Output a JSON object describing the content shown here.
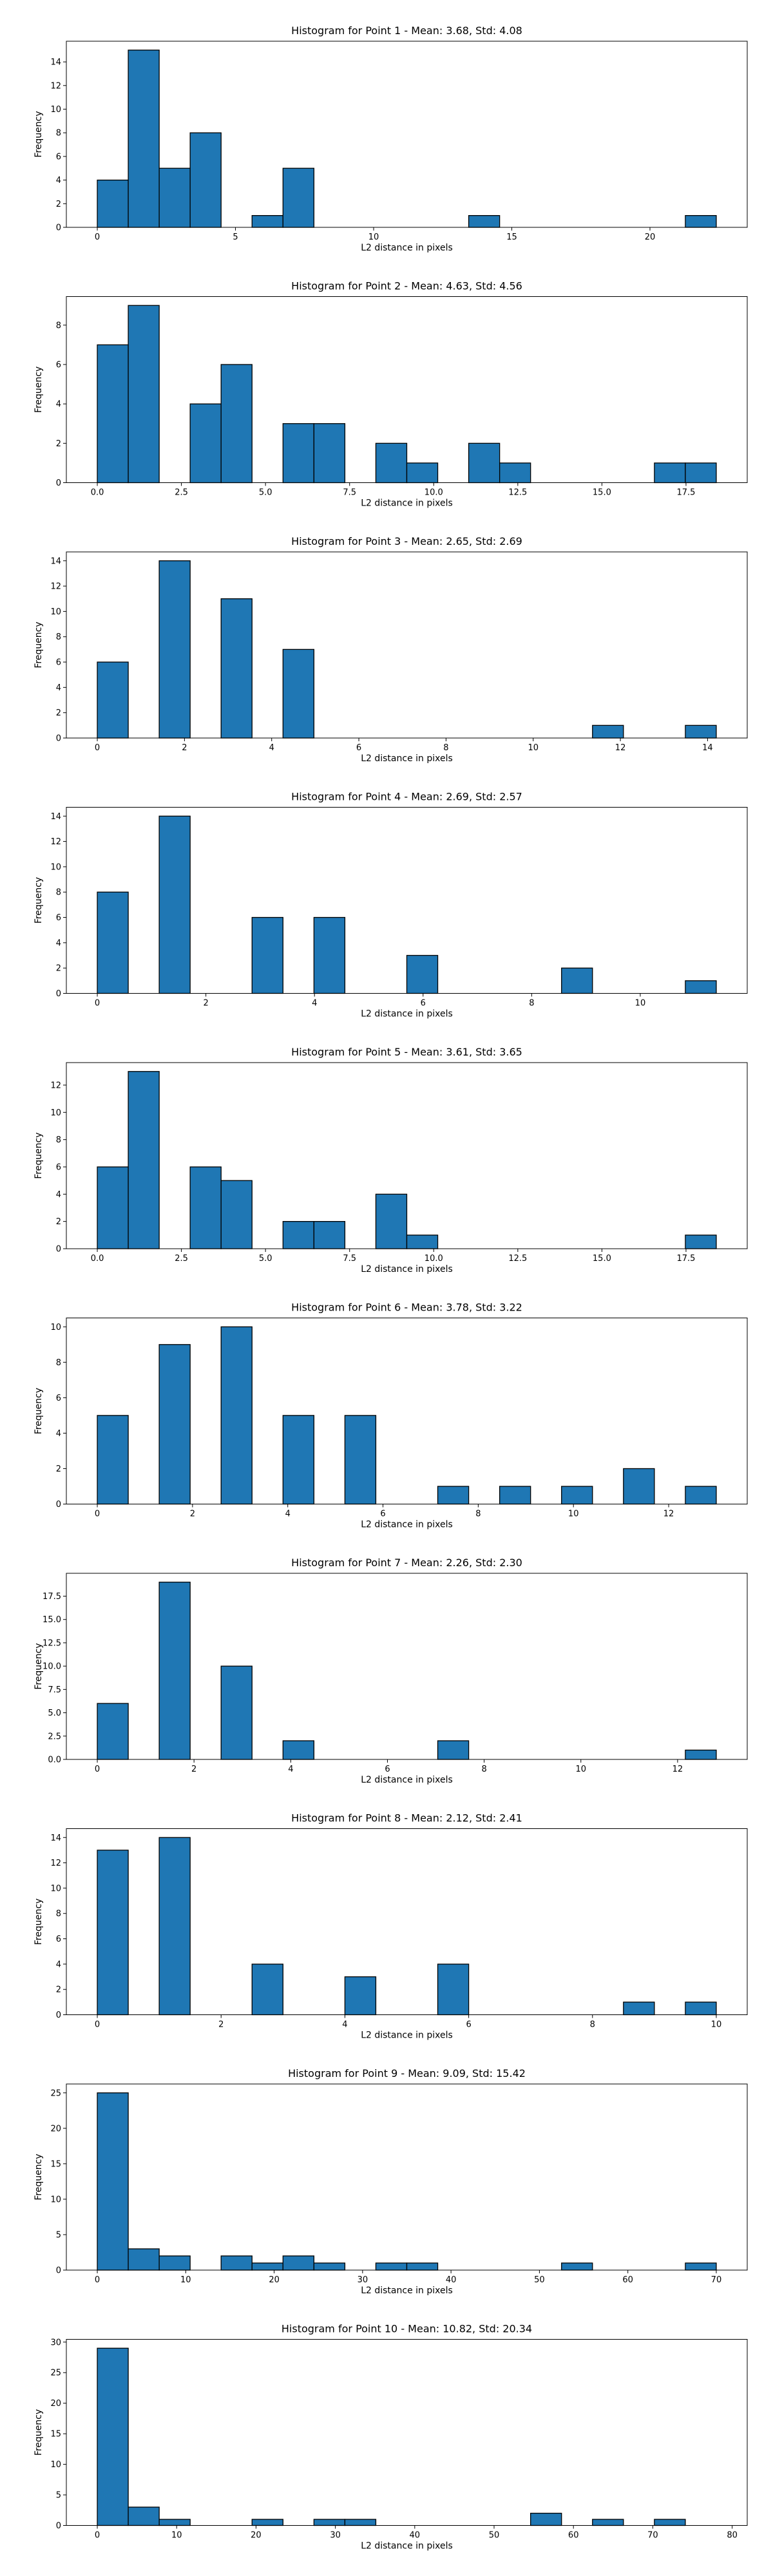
{
  "chart_data": [
    {
      "type": "bar",
      "title": "Histogram for Point 1 - Mean: 3.68, Std: 4.08",
      "xlabel": "L2 distance in pixels",
      "ylabel": "Frequency",
      "xlim": [
        -1.12,
        23.52
      ],
      "ylim": [
        0,
        15.75
      ],
      "xticks": [
        0,
        5,
        10,
        15,
        20
      ],
      "xtick_labels": [
        "0",
        "5",
        "10",
        "15",
        "20"
      ],
      "yticks": [
        0,
        2,
        4,
        6,
        8,
        10,
        12,
        14
      ],
      "bin_edges": [
        0.0,
        1.12,
        2.24,
        3.36,
        4.48,
        5.6,
        6.72,
        7.84,
        8.96,
        10.08,
        11.2,
        12.32,
        13.44,
        14.56,
        15.68,
        16.8,
        17.92,
        19.04,
        20.16,
        21.28,
        22.4
      ],
      "counts": [
        4,
        15,
        5,
        8,
        0,
        1,
        5,
        0,
        0,
        0,
        0,
        0,
        1,
        0,
        0,
        0,
        0,
        0,
        0,
        1
      ],
      "grid": false
    },
    {
      "type": "bar",
      "title": "Histogram for Point 2 - Mean: 4.63, Std: 4.56",
      "xlabel": "L2 distance in pixels",
      "ylabel": "Frequency",
      "xlim": [
        -0.92,
        19.32
      ],
      "ylim": [
        0,
        9.45
      ],
      "xticks": [
        0,
        2.5,
        5,
        7.5,
        10,
        12.5,
        15,
        17.5
      ],
      "xtick_labels": [
        "0.0",
        "2.5",
        "5.0",
        "7.5",
        "10.0",
        "12.5",
        "15.0",
        "17.5"
      ],
      "yticks": [
        0,
        2,
        4,
        6,
        8
      ],
      "bin_edges": [
        0.0,
        0.92,
        1.84,
        2.76,
        3.68,
        4.6,
        5.52,
        6.44,
        7.36,
        8.28,
        9.2,
        10.12,
        11.04,
        11.96,
        12.88,
        13.8,
        14.72,
        15.64,
        16.56,
        17.48,
        18.4
      ],
      "counts": [
        7,
        9,
        0,
        4,
        6,
        0,
        3,
        3,
        0,
        2,
        1,
        0,
        2,
        1,
        0,
        0,
        0,
        0,
        1,
        1
      ],
      "grid": false
    },
    {
      "type": "bar",
      "title": "Histogram for Point 3 - Mean: 2.65, Std: 2.69",
      "xlabel": "L2 distance in pixels",
      "ylabel": "Frequency",
      "xlim": [
        -0.71,
        14.91
      ],
      "ylim": [
        0,
        14.7
      ],
      "xticks": [
        0,
        2,
        4,
        6,
        8,
        10,
        12,
        14
      ],
      "xtick_labels": [
        "0",
        "2",
        "4",
        "6",
        "8",
        "10",
        "12",
        "14"
      ],
      "yticks": [
        0,
        2,
        4,
        6,
        8,
        10,
        12,
        14
      ],
      "bin_edges": [
        0.0,
        0.71,
        1.42,
        2.13,
        2.84,
        3.55,
        4.26,
        4.97,
        5.68,
        6.39,
        7.1,
        7.81,
        8.52,
        9.23,
        9.94,
        10.65,
        11.36,
        12.07,
        12.78,
        13.49,
        14.2
      ],
      "counts": [
        6,
        0,
        14,
        0,
        11,
        0,
        7,
        0,
        0,
        0,
        0,
        0,
        0,
        0,
        0,
        0,
        1,
        0,
        0,
        1
      ],
      "grid": false
    },
    {
      "type": "bar",
      "title": "Histogram for Point 4 - Mean: 2.69, Std: 2.57",
      "xlabel": "L2 distance in pixels",
      "ylabel": "Frequency",
      "xlim": [
        -0.57,
        11.97
      ],
      "ylim": [
        0,
        14.7
      ],
      "xticks": [
        0,
        2,
        4,
        6,
        8,
        10
      ],
      "xtick_labels": [
        "0",
        "2",
        "4",
        "6",
        "8",
        "10"
      ],
      "yticks": [
        0,
        2,
        4,
        6,
        8,
        10,
        12,
        14
      ],
      "bin_edges": [
        0.0,
        0.57,
        1.14,
        1.71,
        2.28,
        2.85,
        3.42,
        3.99,
        4.56,
        5.13,
        5.7,
        6.27,
        6.84,
        7.41,
        7.98,
        8.55,
        9.12,
        9.69,
        10.26,
        10.83,
        11.4
      ],
      "counts": [
        8,
        0,
        14,
        0,
        0,
        6,
        0,
        6,
        0,
        0,
        3,
        0,
        0,
        0,
        0,
        2,
        0,
        0,
        0,
        1
      ],
      "grid": false
    },
    {
      "type": "bar",
      "title": "Histogram for Point 5 - Mean: 3.61, Std: 3.65",
      "xlabel": "L2 distance in pixels",
      "ylabel": "Frequency",
      "xlim": [
        -0.92,
        19.32
      ],
      "ylim": [
        0,
        13.65
      ],
      "xticks": [
        0,
        2.5,
        5,
        7.5,
        10,
        12.5,
        15,
        17.5
      ],
      "xtick_labels": [
        "0.0",
        "2.5",
        "5.0",
        "7.5",
        "10.0",
        "12.5",
        "15.0",
        "17.5"
      ],
      "yticks": [
        0,
        2,
        4,
        6,
        8,
        10,
        12
      ],
      "bin_edges": [
        0.0,
        0.92,
        1.84,
        2.76,
        3.68,
        4.6,
        5.52,
        6.44,
        7.36,
        8.28,
        9.2,
        10.12,
        11.04,
        11.96,
        12.88,
        13.8,
        14.72,
        15.64,
        16.56,
        17.48,
        18.4
      ],
      "counts": [
        6,
        13,
        0,
        6,
        5,
        0,
        2,
        2,
        0,
        4,
        1,
        0,
        0,
        0,
        0,
        0,
        0,
        0,
        0,
        1
      ],
      "grid": false
    },
    {
      "type": "bar",
      "title": "Histogram for Point 6 - Mean: 3.78, Std: 3.22",
      "xlabel": "L2 distance in pixels",
      "ylabel": "Frequency",
      "xlim": [
        -0.65,
        13.65
      ],
      "ylim": [
        0,
        10.5
      ],
      "xticks": [
        0,
        2,
        4,
        6,
        8,
        10,
        12
      ],
      "xtick_labels": [
        "0",
        "2",
        "4",
        "6",
        "8",
        "10",
        "12"
      ],
      "yticks": [
        0,
        2,
        4,
        6,
        8,
        10
      ],
      "bin_edges": [
        0.0,
        0.65,
        1.3,
        1.95,
        2.6,
        3.25,
        3.9,
        4.55,
        5.2,
        5.85,
        6.5,
        7.15,
        7.8,
        8.45,
        9.1,
        9.75,
        10.4,
        11.05,
        11.7,
        12.35,
        13.0
      ],
      "counts": [
        5,
        0,
        9,
        0,
        10,
        0,
        5,
        0,
        5,
        0,
        0,
        1,
        0,
        1,
        0,
        1,
        0,
        2,
        0,
        1
      ],
      "grid": false
    },
    {
      "type": "bar",
      "title": "Histogram for Point 7 - Mean: 2.26, Std: 2.30",
      "xlabel": "L2 distance in pixels",
      "ylabel": "Frequency",
      "xlim": [
        -0.64,
        13.44
      ],
      "ylim": [
        0,
        19.95
      ],
      "xticks": [
        0,
        2,
        4,
        6,
        8,
        10,
        12
      ],
      "xtick_labels": [
        "0",
        "2",
        "4",
        "6",
        "8",
        "10",
        "12"
      ],
      "yticks": [
        0,
        2.5,
        5,
        7.5,
        10,
        12.5,
        15,
        17.5
      ],
      "ytick_labels": [
        "0.0",
        "2.5",
        "5.0",
        "7.5",
        "10.0",
        "12.5",
        "15.0",
        "17.5"
      ],
      "bin_edges": [
        0.0,
        0.64,
        1.28,
        1.92,
        2.56,
        3.2,
        3.84,
        4.48,
        5.12,
        5.76,
        6.4,
        7.04,
        7.68,
        8.32,
        8.96,
        9.6,
        10.24,
        10.88,
        11.52,
        12.16,
        12.8
      ],
      "counts": [
        6,
        0,
        19,
        0,
        10,
        0,
        2,
        0,
        0,
        0,
        0,
        2,
        0,
        0,
        0,
        0,
        0,
        0,
        0,
        1
      ],
      "grid": false
    },
    {
      "type": "bar",
      "title": "Histogram for Point 8 - Mean: 2.12, Std: 2.41",
      "xlabel": "L2 distance in pixels",
      "ylabel": "Frequency",
      "xlim": [
        -0.5,
        10.5
      ],
      "ylim": [
        0,
        14.7
      ],
      "xticks": [
        0,
        2,
        4,
        6,
        8,
        10
      ],
      "xtick_labels": [
        "0",
        "2",
        "4",
        "6",
        "8",
        "10"
      ],
      "yticks": [
        0,
        2,
        4,
        6,
        8,
        10,
        12,
        14
      ],
      "bin_edges": [
        0.0,
        0.5,
        1.0,
        1.5,
        2.0,
        2.5,
        3.0,
        3.5,
        4.0,
        4.5,
        5.0,
        5.5,
        6.0,
        6.5,
        7.0,
        7.5,
        8.0,
        8.5,
        9.0,
        9.5,
        10.0
      ],
      "counts": [
        13,
        0,
        14,
        0,
        0,
        4,
        0,
        0,
        3,
        0,
        0,
        4,
        0,
        0,
        0,
        0,
        0,
        1,
        0,
        1
      ],
      "grid": false
    },
    {
      "type": "bar",
      "title": "Histogram for Point 9 - Mean: 9.09, Std: 15.42",
      "xlabel": "L2 distance in pixels",
      "ylabel": "Frequency",
      "xlim": [
        -3.5,
        73.5
      ],
      "ylim": [
        0,
        26.25
      ],
      "xticks": [
        0,
        10,
        20,
        30,
        40,
        50,
        60,
        70
      ],
      "xtick_labels": [
        "0",
        "10",
        "20",
        "30",
        "40",
        "50",
        "60",
        "70"
      ],
      "yticks": [
        0,
        5,
        10,
        15,
        20,
        25
      ],
      "bin_edges": [
        0.0,
        3.5,
        7.0,
        10.5,
        14.0,
        17.5,
        21.0,
        24.5,
        28.0,
        31.5,
        35.0,
        38.5,
        42.0,
        45.5,
        49.0,
        52.5,
        56.0,
        59.5,
        63.0,
        66.5,
        70.0
      ],
      "counts": [
        25,
        3,
        2,
        0,
        2,
        1,
        2,
        1,
        0,
        1,
        1,
        0,
        0,
        0,
        0,
        1,
        0,
        0,
        0,
        1
      ],
      "grid": false
    },
    {
      "type": "bar",
      "title": "Histogram for Point 10 - Mean: 10.82, Std: 20.34",
      "xlabel": "L2 distance in pixels",
      "ylabel": "Frequency",
      "xlim": [
        -3.9,
        81.9
      ],
      "ylim": [
        0,
        30.45
      ],
      "xticks": [
        0,
        10,
        20,
        30,
        40,
        50,
        60,
        70,
        80
      ],
      "xtick_labels": [
        "0",
        "10",
        "20",
        "30",
        "40",
        "50",
        "60",
        "70",
        "80"
      ],
      "yticks": [
        0,
        5,
        10,
        15,
        20,
        25,
        30
      ],
      "bin_edges": [
        0.0,
        3.9,
        7.8,
        11.7,
        15.6,
        19.5,
        23.4,
        27.3,
        31.2,
        35.1,
        39.0,
        42.9,
        46.8,
        50.7,
        54.6,
        58.5,
        62.4,
        66.3,
        70.2,
        74.1,
        78.0
      ],
      "counts": [
        29,
        3,
        1,
        0,
        0,
        1,
        0,
        1,
        1,
        0,
        0,
        0,
        0,
        0,
        2,
        0,
        1,
        0,
        1,
        0
      ],
      "grid": false
    }
  ]
}
